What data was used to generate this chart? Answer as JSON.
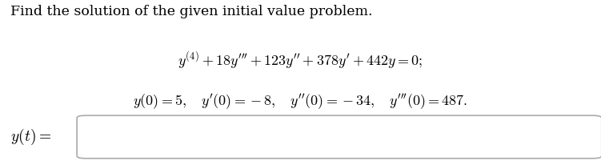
{
  "title_text": "Find the solution of the given initial value problem.",
  "eq_line1": "$y^{(4)} + 18y^{\\prime\\prime\\prime} + 123y^{\\prime\\prime} + 378y^{\\prime} + 442y = 0;$",
  "eq_line2": "$y(0) = 5, \\quad y^{\\prime}(0) = -8, \\quad y^{\\prime\\prime}(0) = -34, \\quad y^{\\prime\\prime\\prime}(0) = 487.$",
  "label_text": "$y(t) =$",
  "bg_color": "#ffffff",
  "text_color": "#000000",
  "box_edge_color": "#aaaaaa",
  "title_fontsize": 12.5,
  "eq_fontsize": 13,
  "label_fontsize": 14
}
